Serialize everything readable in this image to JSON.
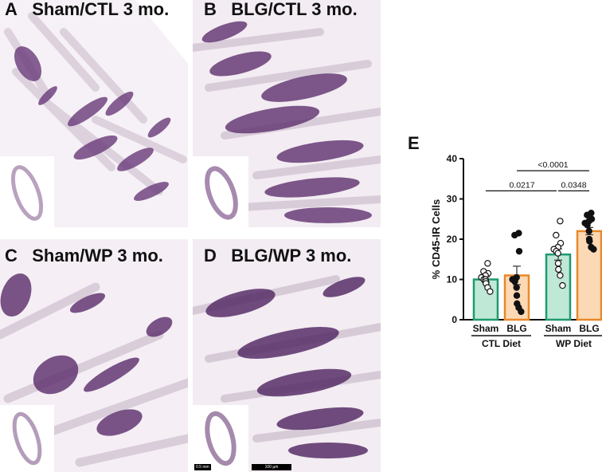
{
  "panels": [
    {
      "letter": "A",
      "title": "Sham/CTL 3 mo."
    },
    {
      "letter": "B",
      "title": "BLG/CTL 3 mo."
    },
    {
      "letter": "C",
      "title": "Sham/WP 3 mo."
    },
    {
      "letter": "D",
      "title": "BLG/WP 3 mo."
    }
  ],
  "scale_bars": {
    "inset_label": "0.5 mm",
    "main_label": "100 µm"
  },
  "colors": {
    "stain": "#5b2d6b",
    "sham_edge": "#1f9a6f",
    "sham_fill": "#bfe8d6",
    "blg_edge": "#e8892a",
    "blg_fill": "#fbd9b5"
  },
  "chart_data": {
    "type": "bar",
    "panel_letter": "E",
    "ylabel": "% CD45-IR Cells",
    "ylim": [
      0,
      40
    ],
    "yticks": [
      "0",
      "10",
      "20",
      "30",
      "40"
    ],
    "categories": [
      "Sham",
      "BLG",
      "Sham",
      "BLG"
    ],
    "groups": [
      "CTL Diet",
      "WP Diet"
    ],
    "bars": [
      {
        "label": "Sham",
        "group": "CTL Diet",
        "mean": 10.0,
        "sem": 0.7,
        "points": [
          14.0,
          12.0,
          11.5,
          11.0,
          10.5,
          10.0,
          10.0,
          9.5,
          9.0,
          8.0,
          7.0
        ]
      },
      {
        "label": "BLG",
        "group": "CTL Diet",
        "mean": 11.0,
        "sem": 2.3,
        "points": [
          21.5,
          21.0,
          17.0,
          10.5,
          10.0,
          9.5,
          8.0,
          6.0,
          4.0,
          3.0,
          2.0
        ]
      },
      {
        "label": "Sham",
        "group": "WP Diet",
        "mean": 16.2,
        "sem": 1.4,
        "points": [
          24.5,
          21.0,
          19.0,
          18.0,
          17.5,
          17.0,
          16.5,
          14.0,
          12.5,
          11.0,
          8.5
        ]
      },
      {
        "label": "BLG",
        "group": "WP Diet",
        "mean": 22.0,
        "sem": 0.9,
        "points": [
          26.5,
          26.0,
          25.0,
          24.5,
          24.0,
          23.5,
          22.0,
          20.0,
          19.5,
          18.0,
          17.5
        ]
      }
    ],
    "comparisons": [
      {
        "from": 0,
        "to": 2,
        "label": "0.0217",
        "y": 32
      },
      {
        "from": 2,
        "to": 3,
        "label": "0.0348",
        "y": 32
      },
      {
        "from": 1,
        "to": 3,
        "label": "<0.0001",
        "y": 37
      }
    ]
  }
}
